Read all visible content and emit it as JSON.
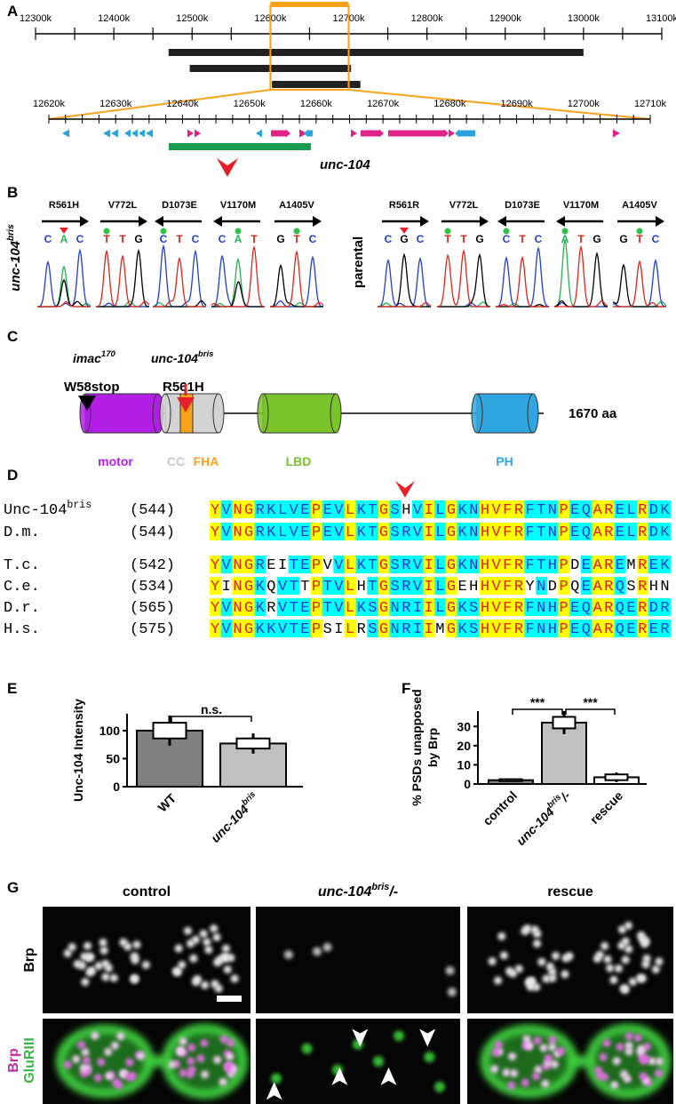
{
  "panel_a": {
    "label": "A",
    "ruler_top": [
      "12300k",
      "12400k",
      "12500k",
      "12600k",
      "12700k",
      "12800k",
      "12900k",
      "13000k",
      "13100k"
    ],
    "ruler_bottom": [
      "12620k",
      "12630k",
      "12640k",
      "12650k",
      "12660k",
      "12670k",
      "12680k",
      "12690k",
      "12700k",
      "12710k"
    ],
    "gene": "unc-104"
  },
  "panel_b": {
    "label": "B",
    "panels": [
      {
        "genotype": {
          "text": "unc-104",
          "sup": "bris"
        },
        "sites": [
          {
            "mutation": "R561H",
            "bases": "CAC",
            "direction": "right"
          },
          {
            "mutation": "V772L",
            "bases": "TTG",
            "direction": "right"
          },
          {
            "mutation": "D1073E",
            "bases": "CTC",
            "direction": "left"
          },
          {
            "mutation": "V1170M",
            "bases": "CAT",
            "direction": "left"
          },
          {
            "mutation": "A1405V",
            "bases": "GTC",
            "direction": "right"
          }
        ]
      },
      {
        "genotype": "parental",
        "sites": [
          {
            "mutation": "R561R",
            "bases": "CGC",
            "direction": "right"
          },
          {
            "mutation": "V772L",
            "bases": "TTG",
            "direction": "right"
          },
          {
            "mutation": "D1073E",
            "bases": "CTC",
            "direction": "left"
          },
          {
            "mutation": "V1170M",
            "bases": "ATG",
            "direction": "left"
          },
          {
            "mutation": "A1405V",
            "bases": "GTC",
            "direction": "right"
          }
        ]
      }
    ]
  },
  "panel_c": {
    "label": "C",
    "alleles": [
      {
        "name": {
          "text": "imac",
          "sup": "170"
        },
        "mutation": "W58stop"
      },
      {
        "name": {
          "text": "unc-104",
          "sup": "bris"
        },
        "mutation": "R561H"
      }
    ],
    "length": "1670 aa",
    "domains": [
      "motor",
      "CC",
      "FHA",
      "LBD",
      "PH"
    ]
  },
  "panel_d": {
    "label": "D",
    "rows": [
      {
        "species": {
          "text": "Unc-104",
          "sup": "bris"
        },
        "start": "(544)",
        "sequence": "YVNGRKLVEPEVLKTGSHVILGKNHVFRFTNPEQARELRDK"
      },
      {
        "species": "D.m.",
        "start": "(544)",
        "sequence": "YVNGRKLVEPEVLKTGSRVILGKNHVFRFTNPEQARELRDK"
      },
      {
        "species": "T.c.",
        "start": "(542)",
        "sequence": "YVNGREITEPVVLKTGSRVILGKNHVFRFTHPDEAREMREK"
      },
      {
        "species": "C.e.",
        "start": "(534)",
        "sequence": "YINGKQVTTPTVLHTGSRVILGEHHVFRYNDPQEARQSRHN"
      },
      {
        "species": "D.r.",
        "start": "(565)",
        "sequence": "YVNGKRVTEPTVLKSGNRIILGKSHVFRFNHPEQARQERDR"
      },
      {
        "species": "H.s.",
        "start": "(575)",
        "sequence": "YVNGKKVTEPSILRSGNRIIMGKSHVFRFNHPEQARQERER"
      }
    ]
  },
  "chart_data": [
    {
      "panel": "E",
      "type": "bar",
      "ylabel": [
        "Unc-104 Intensity"
      ],
      "categories": [
        "WT",
        {
          "text": "unc-104",
          "sup": "bris"
        }
      ],
      "values": [
        100,
        77
      ],
      "sem": [
        14,
        9
      ],
      "sd": [
        27,
        18
      ],
      "colors": [
        "#808080",
        "#c0c0c0"
      ],
      "ylim": [
        0,
        130
      ],
      "yticks": [
        0,
        50,
        100
      ],
      "comparisons": [
        {
          "label": "n.s.",
          "pair": [
            0,
            1
          ]
        }
      ]
    },
    {
      "panel": "F",
      "type": "bar",
      "ylabel": [
        "% PSDs unapposed",
        "by Brp"
      ],
      "categories": [
        "control",
        {
          "text": "unc-104",
          "sup": "bris",
          "suffix": "/-"
        },
        "rescue"
      ],
      "values": [
        2,
        32,
        3.5
      ],
      "sem": [
        0.5,
        3,
        1.5
      ],
      "sd": [
        0.8,
        6,
        2.5
      ],
      "colors": [
        "#808080",
        "#c0c0c0",
        "#ffffff"
      ],
      "ylim": [
        0,
        38
      ],
      "yticks": [
        0,
        10,
        20,
        30
      ],
      "comparisons": [
        {
          "label": "***",
          "pair": [
            0,
            1
          ]
        },
        {
          "label": "***",
          "pair": [
            1,
            2
          ]
        }
      ]
    }
  ],
  "panel_g": {
    "label": "G",
    "columns": [
      "control",
      {
        "text": "unc-104",
        "sup": "bris",
        "suffix": "/-"
      },
      "rescue"
    ],
    "rows": [
      [
        "Brp"
      ],
      [
        "Brp",
        "GluRIII"
      ]
    ]
  }
}
